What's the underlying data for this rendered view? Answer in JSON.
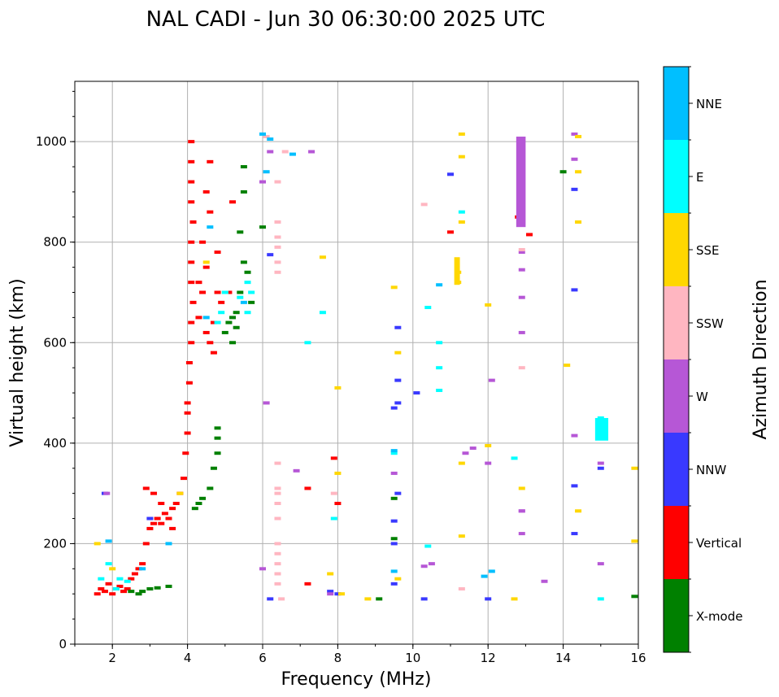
{
  "colors": {
    "X-mode": "#008000",
    "Vertical": "#ff0000",
    "NNW": "#3939ff",
    "W": "#b657d6",
    "SSW": "#ffb6c1",
    "SSE": "#ffd700",
    "E": "#00ffff",
    "NNE": "#00bfff",
    "grid": "#b0b0b0"
  },
  "chart_data": {
    "type": "scatter",
    "title": "NAL CADI - Jun 30 06:30:00 2025 UTC",
    "xlabel": "Frequency (MHz)",
    "ylabel": "Virtual height (km)",
    "xlim": [
      1,
      16
    ],
    "ylim": [
      0,
      1120
    ],
    "xticks": [
      "2",
      "4",
      "6",
      "8",
      "10",
      "12",
      "14",
      "16"
    ],
    "yticks": [
      "0",
      "200",
      "400",
      "600",
      "800",
      "1000"
    ],
    "grid": true,
    "colorbar": {
      "label": "Azimuth Direction",
      "categories": [
        "X-mode",
        "Vertical",
        "NNW",
        "W",
        "SSW",
        "SSE",
        "E",
        "NNE"
      ]
    },
    "series": [
      {
        "name": "Vertical",
        "points": [
          [
            1.6,
            100
          ],
          [
            1.7,
            110
          ],
          [
            1.8,
            105
          ],
          [
            1.9,
            120
          ],
          [
            2.0,
            100
          ],
          [
            2.1,
            110
          ],
          [
            2.2,
            115
          ],
          [
            2.3,
            105
          ],
          [
            2.4,
            110
          ],
          [
            2.5,
            130
          ],
          [
            2.6,
            140
          ],
          [
            2.7,
            150
          ],
          [
            2.8,
            160
          ],
          [
            2.9,
            200
          ],
          [
            3.0,
            230
          ],
          [
            3.1,
            240
          ],
          [
            3.2,
            250
          ],
          [
            3.3,
            240
          ],
          [
            3.4,
            260
          ],
          [
            3.5,
            250
          ],
          [
            3.6,
            270
          ],
          [
            3.7,
            280
          ],
          [
            3.8,
            300
          ],
          [
            3.9,
            330
          ],
          [
            3.95,
            380
          ],
          [
            4.0,
            420
          ],
          [
            4.0,
            460
          ],
          [
            4.0,
            480
          ],
          [
            4.05,
            520
          ],
          [
            4.05,
            560
          ],
          [
            4.1,
            600
          ],
          [
            4.1,
            640
          ],
          [
            4.15,
            680
          ],
          [
            4.1,
            720
          ],
          [
            4.1,
            760
          ],
          [
            4.1,
            800
          ],
          [
            4.15,
            840
          ],
          [
            4.1,
            880
          ],
          [
            4.1,
            920
          ],
          [
            4.1,
            960
          ],
          [
            4.1,
            1000
          ],
          [
            4.3,
            650
          ],
          [
            4.4,
            700
          ],
          [
            4.5,
            750
          ],
          [
            4.6,
            600
          ],
          [
            4.7,
            640
          ],
          [
            4.8,
            700
          ],
          [
            4.9,
            680
          ],
          [
            4.4,
            800
          ],
          [
            4.5,
            900
          ],
          [
            4.6,
            960
          ],
          [
            4.7,
            580
          ],
          [
            4.5,
            620
          ],
          [
            4.3,
            720
          ],
          [
            4.6,
            860
          ],
          [
            4.8,
            780
          ],
          [
            5.1,
            700
          ],
          [
            5.2,
            880
          ],
          [
            7.9,
            370
          ],
          [
            8.0,
            280
          ],
          [
            11.0,
            820
          ],
          [
            12.8,
            850
          ],
          [
            13.1,
            815
          ],
          [
            7.2,
            310
          ],
          [
            7.2,
            120
          ],
          [
            2.9,
            310
          ],
          [
            3.1,
            300
          ],
          [
            3.3,
            280
          ],
          [
            3.6,
            230
          ]
        ]
      },
      {
        "name": "X-mode",
        "points": [
          [
            2.5,
            105
          ],
          [
            2.7,
            100
          ],
          [
            2.8,
            105
          ],
          [
            3.0,
            110
          ],
          [
            3.2,
            112
          ],
          [
            3.5,
            115
          ],
          [
            4.2,
            270
          ],
          [
            4.3,
            280
          ],
          [
            4.4,
            290
          ],
          [
            4.6,
            310
          ],
          [
            4.7,
            350
          ],
          [
            4.8,
            380
          ],
          [
            4.8,
            410
          ],
          [
            4.8,
            430
          ],
          [
            5.0,
            620
          ],
          [
            5.1,
            640
          ],
          [
            5.2,
            650
          ],
          [
            5.3,
            660
          ],
          [
            5.4,
            700
          ],
          [
            5.5,
            760
          ],
          [
            5.4,
            820
          ],
          [
            5.5,
            900
          ],
          [
            5.5,
            950
          ],
          [
            5.3,
            630
          ],
          [
            5.2,
            600
          ],
          [
            5.6,
            740
          ],
          [
            5.7,
            680
          ],
          [
            9.1,
            90
          ],
          [
            9.5,
            290
          ],
          [
            9.5,
            210
          ],
          [
            14.0,
            940
          ],
          [
            15.0,
            410
          ],
          [
            15.1,
            420
          ],
          [
            15.9,
            95
          ],
          [
            6.0,
            830
          ]
        ]
      },
      {
        "name": "NNW",
        "points": [
          [
            1.8,
            300
          ],
          [
            3.0,
            250
          ],
          [
            6.2,
            775
          ],
          [
            7.8,
            105
          ],
          [
            8.0,
            100
          ],
          [
            9.5,
            120
          ],
          [
            9.5,
            245
          ],
          [
            9.6,
            300
          ],
          [
            9.5,
            470
          ],
          [
            9.6,
            480
          ],
          [
            9.6,
            525
          ],
          [
            9.6,
            630
          ],
          [
            10.1,
            500
          ],
          [
            10.3,
            90
          ],
          [
            11.0,
            935
          ],
          [
            12.0,
            90
          ],
          [
            14.3,
            315
          ],
          [
            14.3,
            220
          ],
          [
            14.3,
            905
          ],
          [
            14.3,
            705
          ],
          [
            15.0,
            350
          ],
          [
            9.5,
            200
          ],
          [
            6.2,
            90
          ]
        ]
      },
      {
        "name": "W",
        "points": [
          [
            1.85,
            300
          ],
          [
            6.1,
            480
          ],
          [
            6.0,
            150
          ],
          [
            6.0,
            920
          ],
          [
            6.2,
            980
          ],
          [
            6.9,
            345
          ],
          [
            7.3,
            980
          ],
          [
            7.8,
            100
          ],
          [
            9.5,
            340
          ],
          [
            10.3,
            155
          ],
          [
            10.5,
            160
          ],
          [
            11.4,
            380
          ],
          [
            11.6,
            390
          ],
          [
            12.1,
            525
          ],
          [
            12.9,
            220
          ],
          [
            12.9,
            265
          ],
          [
            12.9,
            265
          ],
          [
            12.9,
            620
          ],
          [
            12.9,
            690
          ],
          [
            12.9,
            745
          ],
          [
            12.9,
            780
          ],
          [
            12.9,
            840
          ],
          [
            12.9,
            870
          ],
          [
            12.9,
            890
          ],
          [
            12.9,
            940
          ],
          [
            12.9,
            960
          ],
          [
            12.9,
            1000
          ],
          [
            13.5,
            125
          ],
          [
            14.3,
            415
          ],
          [
            14.3,
            965
          ],
          [
            14.3,
            1015
          ],
          [
            15.0,
            360
          ],
          [
            15.0,
            160
          ],
          [
            15.0,
            410
          ],
          [
            15.0,
            430
          ],
          [
            12.0,
            360
          ]
        ]
      },
      {
        "name": "SSW",
        "points": [
          [
            6.4,
            120
          ],
          [
            6.4,
            140
          ],
          [
            6.4,
            160
          ],
          [
            6.4,
            180
          ],
          [
            6.4,
            200
          ],
          [
            6.4,
            250
          ],
          [
            6.4,
            280
          ],
          [
            6.4,
            300
          ],
          [
            6.4,
            310
          ],
          [
            6.4,
            360
          ],
          [
            6.4,
            740
          ],
          [
            6.4,
            760
          ],
          [
            6.4,
            790
          ],
          [
            6.4,
            810
          ],
          [
            6.4,
            840
          ],
          [
            6.4,
            920
          ],
          [
            6.1,
            1010
          ],
          [
            6.6,
            980
          ],
          [
            7.9,
            300
          ],
          [
            10.3,
            875
          ],
          [
            12.9,
            550
          ],
          [
            12.9,
            785
          ],
          [
            11.3,
            110
          ],
          [
            6.5,
            90
          ]
        ]
      },
      {
        "name": "SSE",
        "points": [
          [
            1.6,
            200
          ],
          [
            2.0,
            150
          ],
          [
            3.8,
            300
          ],
          [
            4.5,
            760
          ],
          [
            5.0,
            700
          ],
          [
            7.6,
            770
          ],
          [
            7.8,
            140
          ],
          [
            8.0,
            510
          ],
          [
            8.1,
            100
          ],
          [
            8.8,
            90
          ],
          [
            9.5,
            710
          ],
          [
            9.6,
            580
          ],
          [
            9.6,
            130
          ],
          [
            11.2,
            740
          ],
          [
            11.2,
            720
          ],
          [
            11.3,
            360
          ],
          [
            11.3,
            840
          ],
          [
            11.3,
            970
          ],
          [
            11.3,
            1015
          ],
          [
            11.3,
            215
          ],
          [
            12.0,
            395
          ],
          [
            12.0,
            675
          ],
          [
            12.7,
            90
          ],
          [
            12.9,
            310
          ],
          [
            14.1,
            555
          ],
          [
            14.4,
            840
          ],
          [
            14.4,
            940
          ],
          [
            14.4,
            265
          ],
          [
            14.4,
            1010
          ],
          [
            15.9,
            350
          ],
          [
            15.9,
            205
          ],
          [
            8.0,
            340
          ]
        ]
      },
      {
        "name": "E",
        "points": [
          [
            1.7,
            130
          ],
          [
            1.9,
            160
          ],
          [
            2.2,
            130
          ],
          [
            2.4,
            125
          ],
          [
            2.1,
            110
          ],
          [
            4.8,
            640
          ],
          [
            4.9,
            660
          ],
          [
            5.0,
            700
          ],
          [
            5.4,
            690
          ],
          [
            5.6,
            720
          ],
          [
            5.6,
            660
          ],
          [
            5.7,
            700
          ],
          [
            7.2,
            600
          ],
          [
            7.6,
            660
          ],
          [
            9.5,
            380
          ],
          [
            10.4,
            195
          ],
          [
            10.4,
            670
          ],
          [
            10.7,
            600
          ],
          [
            10.7,
            550
          ],
          [
            10.7,
            505
          ],
          [
            11.3,
            860
          ],
          [
            12.7,
            370
          ],
          [
            15.0,
            440
          ],
          [
            15.0,
            450
          ],
          [
            15.0,
            90
          ],
          [
            7.9,
            250
          ]
        ]
      },
      {
        "name": "NNE",
        "points": [
          [
            1.9,
            205
          ],
          [
            2.8,
            150
          ],
          [
            3.5,
            200
          ],
          [
            6.0,
            1015
          ],
          [
            6.2,
            1005
          ],
          [
            6.8,
            975
          ],
          [
            4.6,
            830
          ],
          [
            9.5,
            145
          ],
          [
            9.5,
            385
          ],
          [
            10.7,
            715
          ],
          [
            11.9,
            135
          ],
          [
            12.1,
            145
          ],
          [
            5.5,
            680
          ],
          [
            6.1,
            940
          ],
          [
            4.5,
            650
          ]
        ]
      }
    ],
    "bars": [
      {
        "name": "SSE",
        "x": [
          11.1,
          11.25
        ],
        "y": [
          715,
          770
        ]
      },
      {
        "name": "E",
        "x": [
          14.85,
          15.2
        ],
        "y": [
          405,
          450
        ]
      },
      {
        "name": "W",
        "x": [
          12.75,
          13.0
        ],
        "y": [
          830,
          1010
        ]
      }
    ]
  }
}
